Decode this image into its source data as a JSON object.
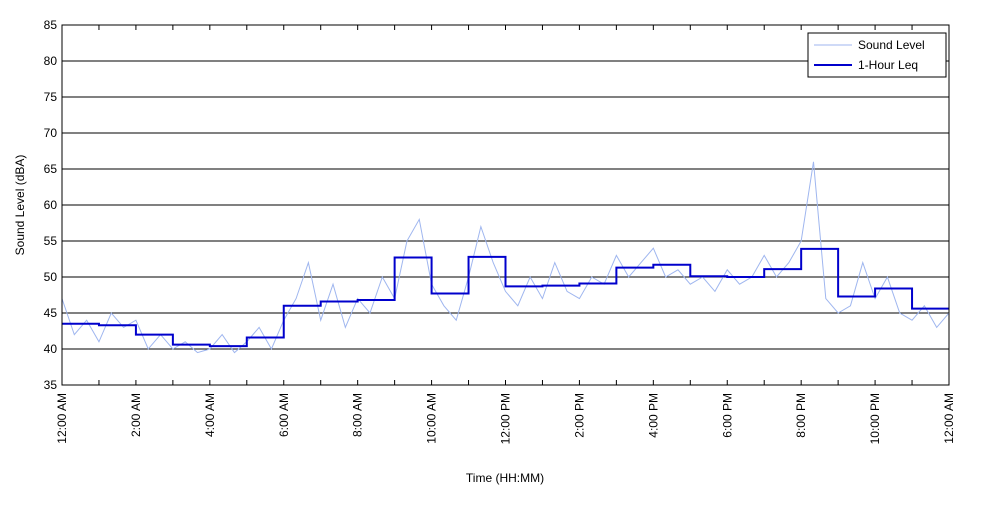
{
  "chart_data": {
    "type": "line",
    "ylabel": "Sound Level (dBA)",
    "xlabel": "Time (HH:MM)",
    "xlim": [
      0,
      1440
    ],
    "xticks": [
      {
        "value": 0,
        "label": "12:00 AM"
      },
      {
        "value": 120,
        "label": "2:00 AM"
      },
      {
        "value": 240,
        "label": "4:00 AM"
      },
      {
        "value": 360,
        "label": "6:00 AM"
      },
      {
        "value": 480,
        "label": "8:00 AM"
      },
      {
        "value": 600,
        "label": "10:00 AM"
      },
      {
        "value": 720,
        "label": "12:00 PM"
      },
      {
        "value": 840,
        "label": "2:00 PM"
      },
      {
        "value": 960,
        "label": "4:00 PM"
      },
      {
        "value": 1080,
        "label": "6:00 PM"
      },
      {
        "value": 1200,
        "label": "8:00 PM"
      },
      {
        "value": 1320,
        "label": "10:00 PM"
      },
      {
        "value": 1440,
        "label": "12:00 AM"
      }
    ],
    "xminorticks": [
      60,
      180,
      300,
      420,
      540,
      660,
      780,
      900,
      1020,
      1140,
      1260,
      1380
    ],
    "ylim": [
      35,
      85
    ],
    "yticks": [
      35,
      40,
      45,
      50,
      55,
      60,
      65,
      70,
      75,
      80,
      85
    ],
    "grid": true,
    "legend": "upper right",
    "series": [
      {
        "name": "Sound Level",
        "color": "#9fb6ef",
        "step": false,
        "x": [
          0,
          20,
          40,
          60,
          80,
          100,
          120,
          140,
          160,
          180,
          200,
          220,
          240,
          260,
          280,
          300,
          320,
          340,
          360,
          380,
          400,
          420,
          440,
          460,
          480,
          500,
          520,
          540,
          560,
          580,
          600,
          620,
          640,
          660,
          680,
          700,
          720,
          740,
          760,
          780,
          800,
          820,
          840,
          860,
          880,
          900,
          920,
          940,
          960,
          980,
          1000,
          1020,
          1040,
          1060,
          1080,
          1100,
          1120,
          1140,
          1160,
          1180,
          1200,
          1220,
          1240,
          1260,
          1280,
          1300,
          1320,
          1340,
          1360,
          1380,
          1400,
          1420,
          1440
        ],
        "values": [
          47,
          42,
          44,
          41,
          45,
          43,
          44,
          40,
          42,
          40,
          41,
          39.5,
          40,
          42,
          39.5,
          41,
          43,
          40,
          44,
          47,
          52,
          44,
          49,
          43,
          47,
          45,
          50,
          47,
          55,
          58,
          49,
          46,
          44,
          50,
          57,
          52,
          48,
          46,
          50,
          47,
          52,
          48,
          47,
          50,
          49,
          53,
          50,
          52,
          54,
          50,
          51,
          49,
          50,
          48,
          51,
          49,
          50,
          53,
          50,
          52,
          55,
          66,
          47,
          45,
          46,
          52,
          47,
          50,
          45,
          44,
          46,
          43,
          45
        ]
      },
      {
        "name": "1-Hour Leq",
        "color": "#0000cc",
        "step": true,
        "x": [
          0,
          60,
          120,
          180,
          240,
          300,
          360,
          420,
          480,
          540,
          600,
          660,
          720,
          780,
          840,
          900,
          960,
          1020,
          1080,
          1140,
          1200,
          1260,
          1320,
          1380
        ],
        "values": [
          43.5,
          43.3,
          42.0,
          40.6,
          40.4,
          41.6,
          46.0,
          46.6,
          46.8,
          52.7,
          47.7,
          52.8,
          48.7,
          48.8,
          49.1,
          51.3,
          51.7,
          50.1,
          50.0,
          51.1,
          53.9,
          47.3,
          48.4,
          45.6
        ]
      }
    ]
  }
}
